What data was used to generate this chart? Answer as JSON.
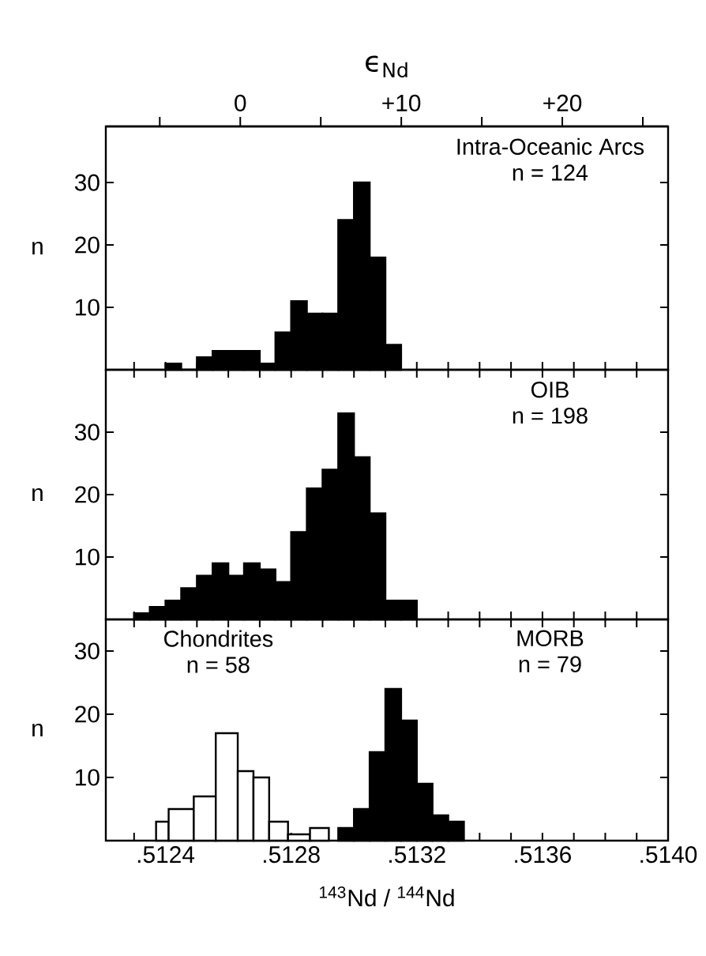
{
  "chart_data": [
    {
      "type": "histogram",
      "x2label": "ϵ$_{Nd}$",
      "ylabel": "n",
      "tick_labels": "y",
      "xlim": [
        0.51221,
        0.514
      ],
      "ylim": [
        0,
        39
      ],
      "yticks": [
        10,
        20,
        30
      ],
      "xticks": [
        {
          "value": 0.5123,
          "label": null
        },
        {
          "value": 0.5124,
          "label": null
        },
        {
          "value": 0.5125,
          "label": null
        },
        {
          "value": 0.5126,
          "label": null
        },
        {
          "value": 0.5127,
          "label": null
        },
        {
          "value": 0.5128,
          "label": null
        },
        {
          "value": 0.5129,
          "label": null
        },
        {
          "value": 0.513,
          "label": null
        },
        {
          "value": 0.5131,
          "label": null
        },
        {
          "value": 0.5132,
          "label": null
        },
        {
          "value": 0.5133,
          "label": null
        },
        {
          "value": 0.5134,
          "label": null
        },
        {
          "value": 0.5135,
          "label": null
        },
        {
          "value": 0.5136,
          "label": null
        },
        {
          "value": 0.5137,
          "label": null
        },
        {
          "value": 0.5138,
          "label": null
        },
        {
          "value": 0.5139,
          "label": null
        }
      ],
      "x2lim": [
        -8.35,
        26.57
      ],
      "x2ticks": [
        {
          "value": -5,
          "label": null
        },
        {
          "value": 0,
          "label": "0"
        },
        {
          "value": 5,
          "label": null
        },
        {
          "value": 10,
          "label": "+10"
        },
        {
          "value": 15,
          "label": null
        },
        {
          "value": 20,
          "label": "+20"
        },
        {
          "value": 25,
          "label": null
        }
      ],
      "color": "#000000",
      "bins": [
        0.5124,
        0.51245,
        0.5125,
        0.51255,
        0.5126,
        0.51265,
        0.5127,
        0.51275,
        0.5128,
        0.51285,
        0.5129,
        0.51295,
        0.513,
        0.51305,
        0.5131,
        0.51315
      ],
      "values": [
        1,
        0,
        2,
        3,
        3,
        3,
        1,
        6,
        11,
        9,
        9,
        24,
        30,
        18,
        4
      ],
      "annotations": [
        "Intra-Oceanic Arcs",
        "n = 124"
      ]
    },
    {
      "type": "histogram",
      "ylabel": "n",
      "tick_labels": "y",
      "xlim": [
        0.51221,
        0.514
      ],
      "ylim": [
        0,
        40
      ],
      "yticks": [
        10,
        20,
        30
      ],
      "xticks": [
        {
          "value": 0.5123,
          "label": null
        },
        {
          "value": 0.5124,
          "label": null
        },
        {
          "value": 0.5125,
          "label": null
        },
        {
          "value": 0.5126,
          "label": null
        },
        {
          "value": 0.5127,
          "label": null
        },
        {
          "value": 0.5128,
          "label": null
        },
        {
          "value": 0.5129,
          "label": null
        },
        {
          "value": 0.513,
          "label": null
        },
        {
          "value": 0.5131,
          "label": null
        },
        {
          "value": 0.5132,
          "label": null
        },
        {
          "value": 0.5133,
          "label": null
        },
        {
          "value": 0.5134,
          "label": null
        },
        {
          "value": 0.5135,
          "label": null
        },
        {
          "value": 0.5136,
          "label": null
        },
        {
          "value": 0.5137,
          "label": null
        },
        {
          "value": 0.5138,
          "label": null
        },
        {
          "value": 0.5139,
          "label": null
        }
      ],
      "color": "#000000",
      "bins": [
        0.5123,
        0.51235,
        0.5124,
        0.51245,
        0.5125,
        0.51255,
        0.5126,
        0.51265,
        0.5127,
        0.51275,
        0.5128,
        0.51285,
        0.5129,
        0.51295,
        0.513,
        0.51305,
        0.5131,
        0.51315,
        0.5132
      ],
      "values": [
        1,
        2,
        3,
        5,
        7,
        9,
        7,
        9,
        8,
        6,
        14,
        21,
        24,
        33,
        26,
        17,
        3,
        3
      ],
      "annotations": [
        "OIB",
        "n = 198"
      ]
    },
    {
      "type": "histogram",
      "ylabel": "n",
      "xlabel": "$^{143}$Nd / $^{144}$Nd",
      "xlim": [
        0.51221,
        0.514
      ],
      "ylim": [
        0,
        35
      ],
      "yticks": [
        10,
        20,
        30
      ],
      "xticks": [
        {
          "value": 0.5123,
          "label": null
        },
        {
          "value": 0.5124,
          "label": ".5124"
        },
        {
          "value": 0.5125,
          "label": null
        },
        {
          "value": 0.5126,
          "label": null
        },
        {
          "value": 0.5127,
          "label": null
        },
        {
          "value": 0.5128,
          "label": ".5128"
        },
        {
          "value": 0.5129,
          "label": null
        },
        {
          "value": 0.513,
          "label": null
        },
        {
          "value": 0.5131,
          "label": null
        },
        {
          "value": 0.5132,
          "label": ".5132"
        },
        {
          "value": 0.5133,
          "label": null
        },
        {
          "value": 0.5134,
          "label": null
        },
        {
          "value": 0.5135,
          "label": null
        },
        {
          "value": 0.5136,
          "label": ".5136"
        },
        {
          "value": 0.5137,
          "label": null
        },
        {
          "value": 0.5138,
          "label": null
        },
        {
          "value": 0.5139,
          "label": null
        },
        {
          "value": 0.514,
          "label": ".5140"
        }
      ],
      "bins": [
        0.51237,
        0.51241,
        0.51249,
        0.51256,
        0.51263,
        0.51268,
        0.51273,
        0.51279,
        0.51286,
        0.51292,
        0.51295,
        0.513,
        0.51305,
        0.5131,
        0.51315,
        0.5132,
        0.51325,
        0.5133,
        0.51335
      ],
      "series": [
        {
          "color": "#ffffff",
          "values": [
            3,
            5,
            7,
            17,
            11,
            10,
            3,
            1,
            2,
            null,
            null,
            null,
            null,
            null,
            null,
            null,
            null,
            null
          ]
        },
        {
          "color": "#000000",
          "values": [
            null,
            null,
            null,
            null,
            null,
            null,
            null,
            null,
            null,
            null,
            2,
            5,
            14,
            24,
            19,
            9,
            4,
            3
          ]
        }
      ],
      "annotations": [
        "Chondrites",
        "n = 58",
        "MORB",
        "n = 79"
      ]
    }
  ]
}
